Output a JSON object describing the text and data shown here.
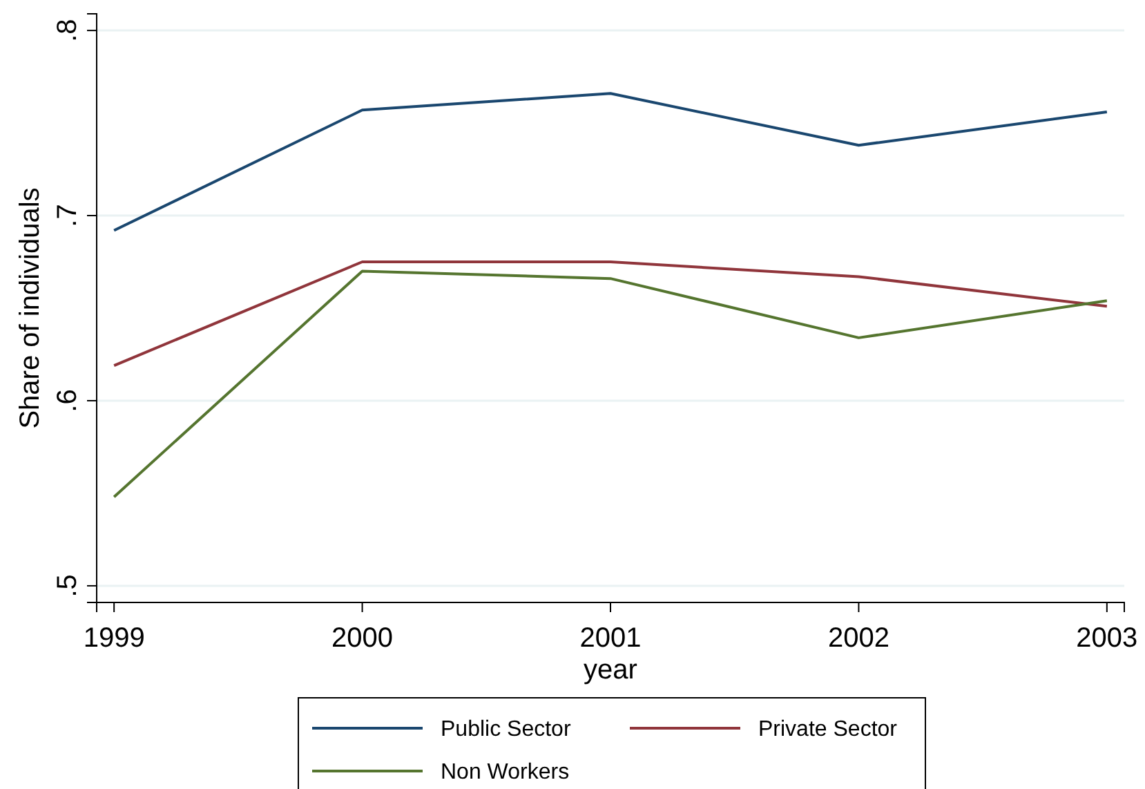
{
  "chart_data": {
    "type": "line",
    "xlabel": "year",
    "ylabel": "Share of individuals",
    "x": [
      1999,
      2000,
      2001,
      2002,
      2003
    ],
    "xlim": [
      1998.93,
      2003.07
    ],
    "xticks": [
      1999,
      2000,
      2001,
      2002,
      2003
    ],
    "ylim": [
      0.491,
      0.809
    ],
    "yticks": [
      {
        "value": 0.5,
        "label": ".5"
      },
      {
        "value": 0.6,
        "label": ".6"
      },
      {
        "value": 0.7,
        "label": ".7"
      },
      {
        "value": 0.8,
        "label": ".8"
      }
    ],
    "grid": "y",
    "legend": "bottom",
    "marker": "none",
    "line_style": "solid",
    "series": [
      {
        "name": "Public Sector",
        "color": "#1a476f",
        "values": [
          0.692,
          0.757,
          0.766,
          0.738,
          0.756
        ]
      },
      {
        "name": "Private Sector",
        "color": "#90353b",
        "values": [
          0.619,
          0.675,
          0.675,
          0.667,
          0.651
        ]
      },
      {
        "name": "Non Workers",
        "color": "#55752f",
        "values": [
          0.548,
          0.67,
          0.666,
          0.634,
          0.654
        ]
      }
    ]
  }
}
